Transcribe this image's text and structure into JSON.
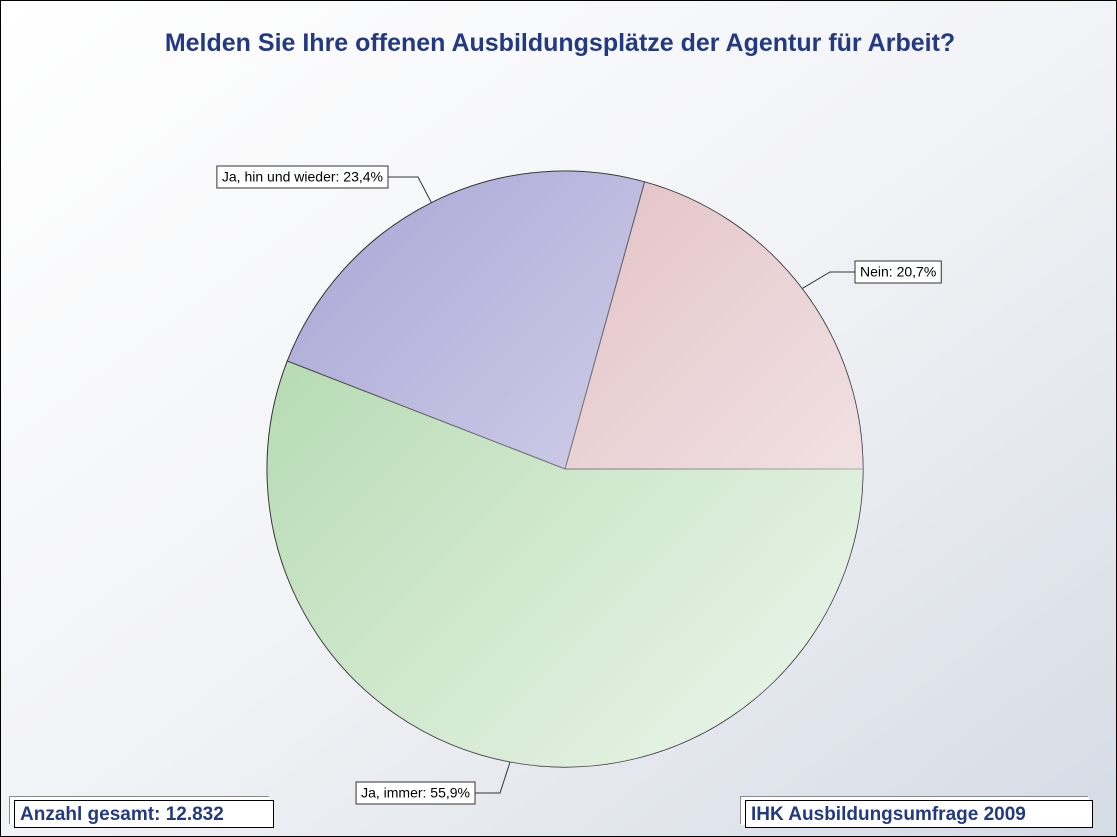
{
  "chart_data": {
    "type": "pie",
    "title": "Melden Sie Ihre offenen Ausbildungsplätze der Agentur für Arbeit?",
    "values": [
      20.7,
      23.4,
      55.9
    ],
    "value_labels": [
      "Nein: 20,7%",
      "Ja, hin und wieder: 23,4%",
      "Ja, immer: 55,9%"
    ],
    "colors": [
      "#dcb3b8",
      "#a7a4d5",
      "#acd6a8"
    ],
    "footnote_left": "Anzahl gesamt: 12.832",
    "footnote_right": "IHK Ausbildungsumfrage 2009"
  }
}
